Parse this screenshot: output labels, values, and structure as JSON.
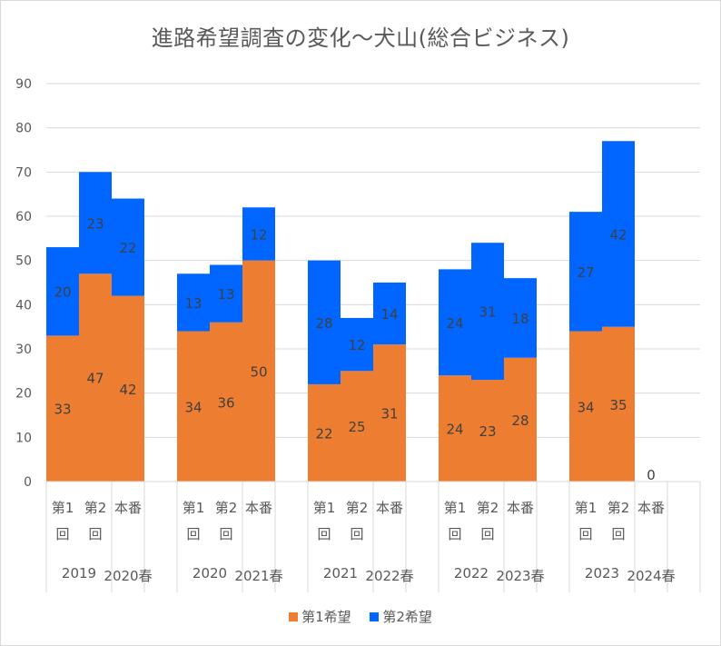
{
  "chart_data": {
    "type": "bar",
    "stacked": true,
    "title": "進路希望調査の変化～犬山(総合ビジネス)",
    "xlabel": "",
    "ylabel": "",
    "ylim": [
      0,
      90
    ],
    "yticks": [
      0,
      10,
      20,
      30,
      40,
      50,
      60,
      70,
      80,
      90
    ],
    "grid": true,
    "legend_position": "bottom",
    "groups": [
      {
        "year_label": "2019",
        "spring_label": "2020春"
      },
      {
        "year_label": "2020",
        "spring_label": "2021春"
      },
      {
        "year_label": "2021",
        "spring_label": "2022春"
      },
      {
        "year_label": "2022",
        "spring_label": "2023春"
      },
      {
        "year_label": "2023",
        "spring_label": "2024春"
      }
    ],
    "subcategories": [
      {
        "line1": "第1",
        "line2": "回"
      },
      {
        "line1": "第2",
        "line2": "回"
      },
      {
        "line1": "本番",
        "line2": ""
      }
    ],
    "categories": [
      "2019 第1回",
      "2019 第2回",
      "2020春 本番",
      "2020 第1回",
      "2020 第2回",
      "2021春 本番",
      "2021 第1回",
      "2021 第2回",
      "2022春 本番",
      "2022 第1回",
      "2022 第2回",
      "2023春 本番",
      "2023 第1回",
      "2023 第2回",
      "2024春 本番"
    ],
    "series": [
      {
        "name": "第1希望",
        "color": "#ED7D31",
        "values": [
          33,
          47,
          42,
          34,
          36,
          50,
          22,
          25,
          31,
          24,
          23,
          28,
          34,
          35,
          0
        ]
      },
      {
        "name": "第2希望",
        "color": "#0066FF",
        "values": [
          20,
          23,
          22,
          13,
          13,
          12,
          28,
          12,
          14,
          24,
          31,
          18,
          27,
          42,
          null
        ]
      }
    ],
    "total_labels": [
      null,
      null,
      null,
      null,
      null,
      null,
      null,
      null,
      null,
      null,
      null,
      null,
      null,
      null,
      0
    ]
  }
}
